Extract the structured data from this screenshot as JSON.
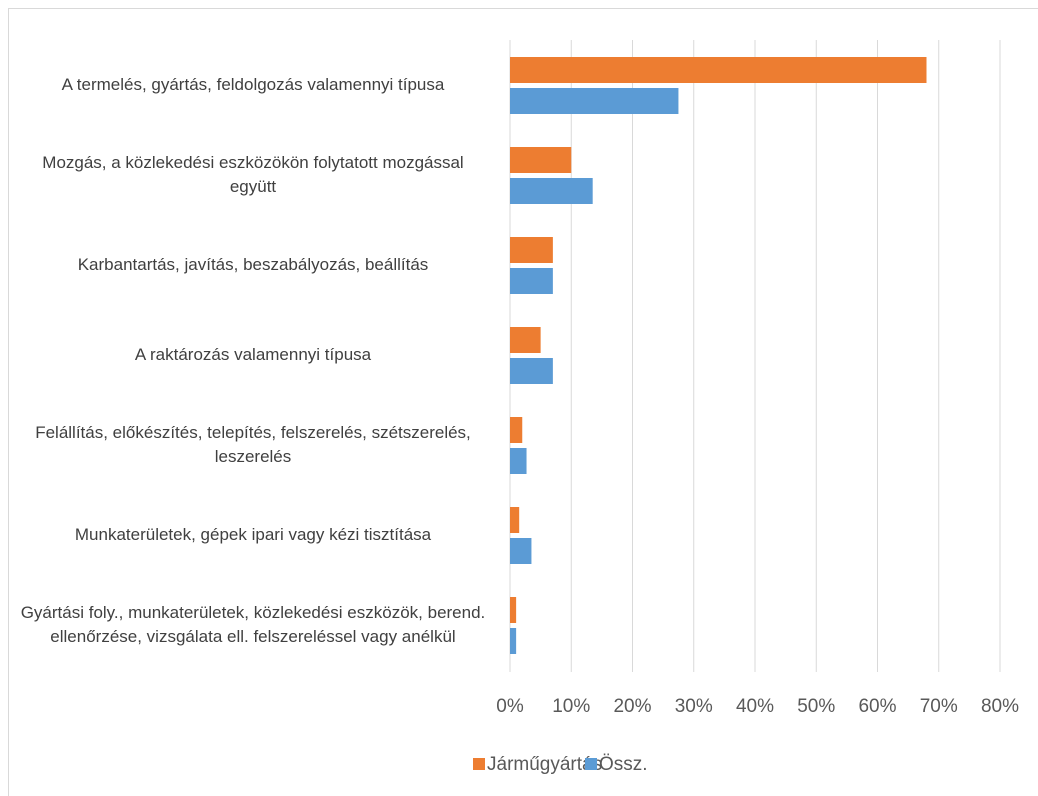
{
  "chart_data": {
    "type": "bar",
    "orientation": "horizontal",
    "categories": [
      "A termelés, gyártás, feldolgozás valamennyi típusa",
      "Mozgás, a közlekedési eszközökön folytatott mozgással együtt",
      "Karbantartás, javítás, beszabályozás, beállítás",
      "A raktározás valamennyi típusa",
      "Felállítás, előkészítés, telepítés, felszerelés, szétszerelés, leszerelés",
      "Munkaterületek, gépek ipari vagy kézi tisztítása",
      "Gyártási foly., munkaterületek, közlekedési eszközök, berend. ellenőrzése, vizsgálata ell. felszereléssel vagy anélkül"
    ],
    "series": [
      {
        "name": "Járműgyártás",
        "color": "#ED7D31",
        "values": [
          68,
          10,
          7,
          5,
          2,
          1.5,
          1
        ]
      },
      {
        "name": "Össz.",
        "color": "#5B9BD5",
        "values": [
          27.5,
          13.5,
          7,
          7,
          2.7,
          3.5,
          1
        ]
      }
    ],
    "xlim": [
      0,
      80
    ],
    "xticks": [
      {
        "value": 0,
        "label": "0%"
      },
      {
        "value": 10,
        "label": "10%"
      },
      {
        "value": 20,
        "label": "20%"
      },
      {
        "value": 30,
        "label": "30%"
      },
      {
        "value": 40,
        "label": "40%"
      },
      {
        "value": 50,
        "label": "50%"
      },
      {
        "value": 60,
        "label": "60%"
      },
      {
        "value": 70,
        "label": "70%"
      },
      {
        "value": 80,
        "label": "80%"
      }
    ],
    "grid": true,
    "legend": "bottom"
  }
}
